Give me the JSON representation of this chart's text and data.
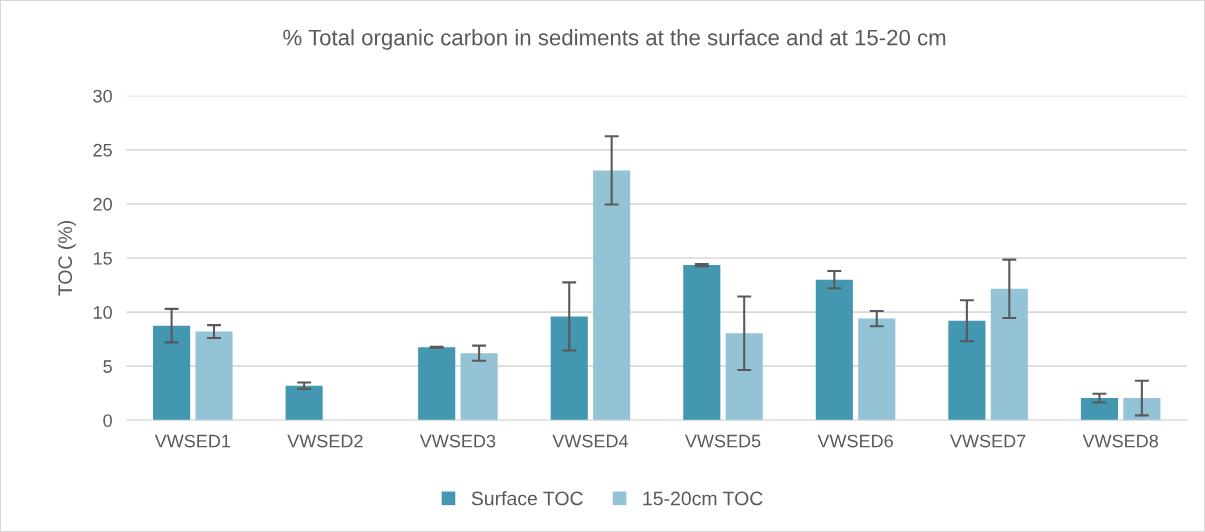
{
  "chart_data": {
    "type": "bar",
    "title": "% Total organic carbon in sediments at the surface and at 15-20 cm",
    "ylabel": "TOC (%)",
    "categories": [
      "VWSED1",
      "VWSED2",
      "VWSED3",
      "VWSED4",
      "VWSED5",
      "VWSED6",
      "VWSED7",
      "VWSED8"
    ],
    "series": [
      {
        "name": "Surface TOC",
        "color": "#4397b0",
        "values": [
          8.75,
          3.2,
          6.75,
          9.6,
          14.35,
          13.0,
          9.2,
          2.05
        ],
        "errors": [
          1.55,
          0.3,
          0.05,
          3.15,
          0.1,
          0.8,
          1.9,
          0.4
        ]
      },
      {
        "name": "15-20cm TOC",
        "color": "#93c3d5",
        "values": [
          8.2,
          null,
          6.2,
          23.1,
          8.05,
          9.4,
          12.15,
          2.05
        ],
        "errors": [
          0.6,
          null,
          0.7,
          3.15,
          3.4,
          0.7,
          2.7,
          1.6
        ]
      }
    ],
    "ylim": [
      0,
      30
    ],
    "yticks": [
      0,
      5,
      10,
      15,
      20,
      25,
      30
    ],
    "grid": "y",
    "legend": "bottom"
  }
}
